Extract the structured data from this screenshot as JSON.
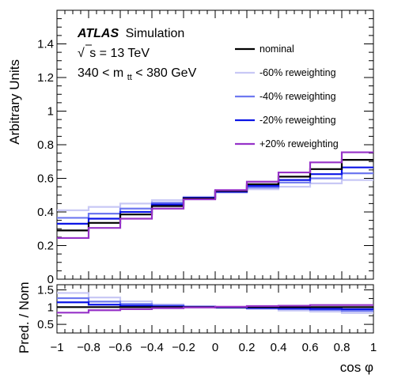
{
  "chart_data": [
    {
      "type": "line",
      "step": true,
      "ylabel": "Arbitrary Units",
      "xlim": [
        -1,
        1
      ],
      "ylim": [
        0,
        1.6
      ],
      "yticks": [
        0,
        0.2,
        0.4,
        0.6,
        0.8,
        1,
        1.2,
        1.4
      ],
      "ytick_labels": [
        "0",
        "0.2",
        "0.4",
        "0.6",
        "0.8",
        "1",
        "1.2",
        "1.4"
      ],
      "grid": false,
      "legend_position": "top-right",
      "annotations": {
        "experiment": "ATLAS",
        "label": "Simulation",
        "energy_sqrt": "s = 13 TeV",
        "energy_prefix": "√",
        "mass_range": "340 < m",
        "mass_sub": "tt",
        "mass_range_end": " < 380 GeV"
      },
      "bin_edges": [
        -1,
        -0.8,
        -0.6,
        -0.4,
        -0.2,
        0,
        0.2,
        0.4,
        0.6,
        0.8,
        1
      ],
      "series": [
        {
          "name": "nominal",
          "color": "#000000",
          "values": [
            0.29,
            0.335,
            0.385,
            0.435,
            0.48,
            0.525,
            0.565,
            0.61,
            0.655,
            0.71
          ]
        },
        {
          "name": "-60% reweighting",
          "color": "#c8c8f5",
          "values": [
            0.41,
            0.43,
            0.45,
            0.47,
            0.49,
            0.515,
            0.535,
            0.55,
            0.57,
            0.59
          ]
        },
        {
          "name": "-40% reweighting",
          "color": "#6e78f0",
          "values": [
            0.365,
            0.39,
            0.42,
            0.455,
            0.485,
            0.52,
            0.545,
            0.575,
            0.6,
            0.63
          ]
        },
        {
          "name": "-20% reweighting",
          "color": "#0a14e6",
          "values": [
            0.33,
            0.36,
            0.4,
            0.445,
            0.485,
            0.52,
            0.555,
            0.59,
            0.625,
            0.665
          ]
        },
        {
          "name": "+20% reweighting",
          "color": "#9632c8",
          "values": [
            0.245,
            0.305,
            0.36,
            0.42,
            0.475,
            0.53,
            0.58,
            0.635,
            0.695,
            0.755
          ]
        }
      ]
    },
    {
      "type": "line",
      "step": true,
      "xlabel": "cos φ",
      "ylabel": "Pred. / Nom",
      "xlim": [
        -1,
        1
      ],
      "ylim": [
        0.25,
        1.65
      ],
      "yticks": [
        0.5,
        1,
        1.5
      ],
      "ytick_labels": [
        "0.5",
        "1",
        "1.5"
      ],
      "xticks": [
        -1,
        -0.8,
        -0.6,
        -0.4,
        -0.2,
        0,
        0.2,
        0.4,
        0.6,
        0.8,
        1
      ],
      "xtick_labels": [
        "−1",
        "−0.8",
        "−0.6",
        "−0.4",
        "−0.2",
        "0",
        "0.2",
        "0.4",
        "0.6",
        "0.8",
        "1"
      ],
      "grid": false,
      "bin_edges": [
        -1,
        -0.8,
        -0.6,
        -0.4,
        -0.2,
        0,
        0.2,
        0.4,
        0.6,
        0.8,
        1
      ],
      "series": [
        {
          "name": "nominal",
          "color": "#000000",
          "values": [
            1,
            1,
            1,
            1,
            1,
            1,
            1,
            1,
            1,
            1
          ]
        },
        {
          "name": "-60% reweighting",
          "color": "#c8c8f5",
          "values": [
            1.41,
            1.28,
            1.17,
            1.08,
            1.02,
            0.98,
            0.95,
            0.9,
            0.87,
            0.83
          ]
        },
        {
          "name": "-40% reweighting",
          "color": "#6e78f0",
          "values": [
            1.26,
            1.16,
            1.09,
            1.05,
            1.01,
            0.99,
            0.96,
            0.94,
            0.92,
            0.89
          ]
        },
        {
          "name": "-20% reweighting",
          "color": "#0a14e6",
          "values": [
            1.14,
            1.07,
            1.04,
            1.02,
            1.01,
            0.99,
            0.98,
            0.97,
            0.95,
            0.94
          ]
        },
        {
          "name": "+20% reweighting",
          "color": "#9632c8",
          "values": [
            0.84,
            0.91,
            0.94,
            0.97,
            0.99,
            1.01,
            1.03,
            1.04,
            1.06,
            1.06
          ]
        }
      ]
    }
  ]
}
